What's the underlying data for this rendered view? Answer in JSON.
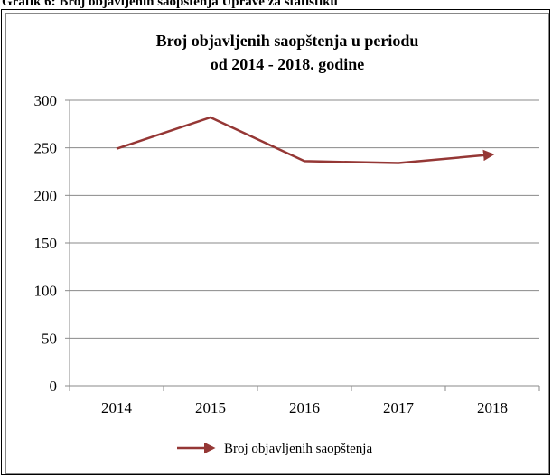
{
  "caption": "Grafik 6: Broj objavljenih saopštenja Uprave za statistiku",
  "chart_data": {
    "type": "line",
    "title": [
      "Broj objavljenih saopštenja u periodu",
      "od 2014 - 2018. godine"
    ],
    "categories": [
      "2014",
      "2015",
      "2016",
      "2017",
      "2018"
    ],
    "series": [
      {
        "name": "Broj objavljenih saopštenja",
        "color": "#953735",
        "values": [
          249,
          282,
          236,
          234,
          243
        ]
      }
    ],
    "ylim": [
      0,
      300
    ],
    "yticks": [
      0,
      50,
      100,
      150,
      200,
      250,
      300
    ],
    "grid": true,
    "legend": "bottom"
  }
}
